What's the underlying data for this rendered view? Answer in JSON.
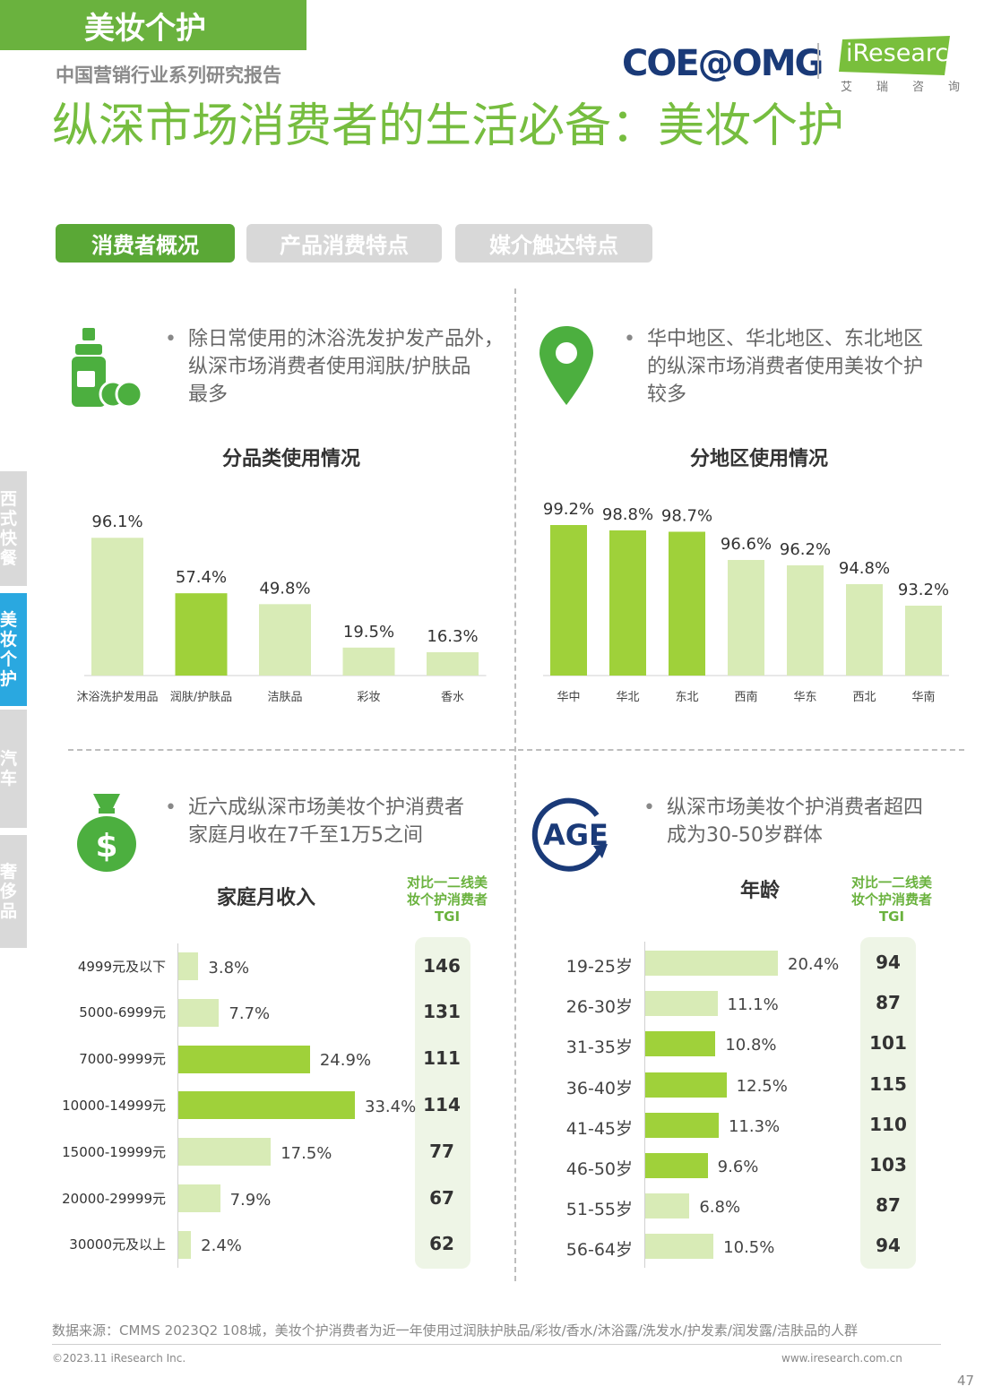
{
  "header": {
    "category_tag": "美妆个护",
    "series": "中国营销行业系列研究报告",
    "title": "纵深市场消费者的生活必备：美妆个护",
    "logo_left": "COE@OMG",
    "logo_right": "iResearch",
    "logo_right_sub": "艾瑞咨询"
  },
  "tabs": [
    {
      "label": "消费者概况",
      "active": true
    },
    {
      "label": "产品消费特点",
      "active": false
    },
    {
      "label": "媒介触达特点",
      "active": false
    }
  ],
  "sidebar": [
    {
      "label": "西式快餐",
      "active": false
    },
    {
      "label": "美妆个护",
      "active": true
    },
    {
      "label": "汽车",
      "active": false
    },
    {
      "label": "奢侈品",
      "active": false
    }
  ],
  "quadrants": {
    "category": {
      "icon": "bottle-icon",
      "bullet_lines": [
        "除日常使用的沐浴洗发护发产品外，",
        "纵深市场消费者使用润肤/护肤品",
        "最多"
      ]
    },
    "region": {
      "icon": "location-pin-icon",
      "bullet_lines": [
        "华中地区、华北地区、东北地区",
        "的纵深市场消费者使用美妆个护",
        "较多"
      ]
    },
    "income": {
      "icon": "money-bag-icon",
      "bullet_lines": [
        "近六成纵深市场美妆个护消费者",
        "家庭月收在7千至1万5之间"
      ]
    },
    "age": {
      "icon": "age-icon",
      "icon_text": "AGE",
      "bullet_lines": [
        "纵深市场美妆个护消费者超四",
        "成为30-50岁群体"
      ]
    }
  },
  "tgi_header_lines": [
    "对比一二线美",
    "妆个护消费者",
    "TGI"
  ],
  "colors": {
    "accent": "#76bd3f",
    "bar_dark": "#9fd13a",
    "bar_light": "#d8ebb6",
    "tab_active": "#5aa836",
    "sidebar_active": "#2aa8e0"
  },
  "chart_data": [
    {
      "type": "bar",
      "title": "分品类使用情况",
      "categories": [
        "沐浴洗护发用品",
        "润肤/护肤品",
        "洁肤品",
        "彩妆",
        "香水"
      ],
      "values": [
        96.1,
        57.4,
        49.8,
        19.5,
        16.3
      ],
      "labels": [
        "96.1%",
        "57.4%",
        "49.8%",
        "19.5%",
        "16.3%"
      ],
      "highlight": [
        false,
        true,
        false,
        false,
        false
      ],
      "ylim": [
        0,
        100
      ]
    },
    {
      "type": "bar",
      "title": "分地区使用情况",
      "categories": [
        "华中",
        "华北",
        "东北",
        "西南",
        "华东",
        "西北",
        "华南"
      ],
      "values": [
        99.2,
        98.8,
        98.7,
        96.6,
        96.2,
        94.8,
        93.2
      ],
      "labels": [
        "99.2%",
        "98.8%",
        "98.7%",
        "96.6%",
        "96.2%",
        "94.8%",
        "93.2%"
      ],
      "highlight": [
        true,
        true,
        true,
        false,
        false,
        false,
        false
      ],
      "ylim": [
        88,
        100
      ]
    },
    {
      "type": "bar",
      "orientation": "horizontal",
      "title": "家庭月收入",
      "categories": [
        "4999元及以下",
        "5000-6999元",
        "7000-9999元",
        "10000-14999元",
        "15000-19999元",
        "20000-29999元",
        "30000元及以上"
      ],
      "values": [
        3.8,
        7.7,
        24.9,
        33.4,
        17.5,
        7.9,
        2.4
      ],
      "labels": [
        "3.8%",
        "7.7%",
        "24.9%",
        "33.4%",
        "17.5%",
        "7.9%",
        "2.4%"
      ],
      "highlight": [
        false,
        false,
        true,
        true,
        false,
        false,
        false
      ],
      "tgi": [
        "146",
        "131",
        "111",
        "114",
        "77",
        "67",
        "62"
      ]
    },
    {
      "type": "bar",
      "orientation": "horizontal",
      "title": "年龄",
      "categories": [
        "19-25岁",
        "26-30岁",
        "31-35岁",
        "36-40岁",
        "41-45岁",
        "46-50岁",
        "51-55岁",
        "56-64岁"
      ],
      "values": [
        20.4,
        11.1,
        10.8,
        12.5,
        11.3,
        9.6,
        6.8,
        10.5
      ],
      "labels": [
        "20.4%",
        "11.1%",
        "10.8%",
        "12.5%",
        "11.3%",
        "9.6%",
        "6.8%",
        "10.5%"
      ],
      "highlight": [
        false,
        false,
        true,
        true,
        true,
        true,
        false,
        false
      ],
      "tgi": [
        "94",
        "87",
        "101",
        "115",
        "110",
        "103",
        "87",
        "94"
      ]
    }
  ],
  "footer": {
    "source": "数据来源：CMMS 2023Q2 108城，美妆个护消费者为近一年使用过润肤护肤品/彩妆/香水/沐浴露/洗发水/护发素/润发露/洁肤品的人群",
    "copyright": "©2023.11 iResearch Inc.",
    "website": "www.iresearch.com.cn",
    "page": "47"
  }
}
